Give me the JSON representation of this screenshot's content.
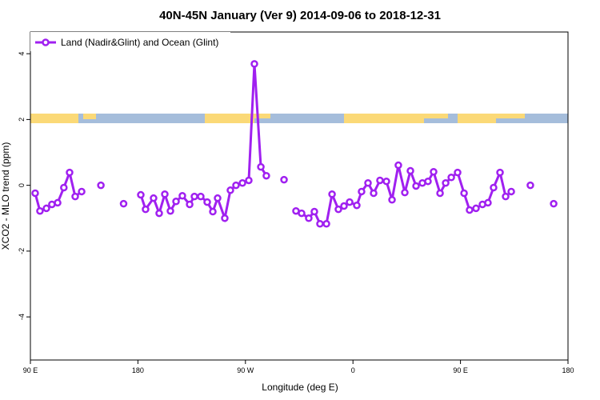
{
  "chart_data": {
    "type": "line",
    "title": "40N-45N January (Ver 9)   2014-09-06 to 2018-12-31",
    "x_label": "Longitude (deg E)",
    "y_label": "XCO2 - MLO trend (ppm)",
    "xlim": [
      90,
      540
    ],
    "ylim": [
      -5.31,
      4.66
    ],
    "xticks": [
      {
        "value": 90,
        "label": "90 E"
      },
      180,
      {
        "value": 270,
        "label": "90 W"
      },
      {
        "value": 360,
        "label": "0"
      },
      {
        "value": 450,
        "label": "90 E"
      },
      {
        "value": 540,
        "label": "180"
      }
    ],
    "yticks": [
      -4,
      -2,
      0,
      2,
      4
    ],
    "legend": "top-left",
    "series": [
      {
        "name": "Land (Nadir&Glint) and Ocean (Glint)",
        "color": "#a020f0",
        "x": [
          94,
          98,
          103.4,
          108,
          112.8,
          118,
          122.8,
          127.5,
          132.9,
          null,
          149,
          null,
          168,
          null,
          182.4,
          186.4,
          193.1,
          197.8,
          202.5,
          207.2,
          211.9,
          217.2,
          223.3,
          227.3,
          232.6,
          238,
          242.7,
          246.7,
          252.7,
          257.4,
          262.1,
          267.5,
          272.8,
          277.5,
          282.9,
          287.5,
          null,
          302.3,
          null,
          312.3,
          317,
          323,
          327.7,
          332.4,
          337.8,
          342.5,
          347.8,
          352.5,
          357.2,
          363.2,
          367.2,
          372.6,
          377.3,
          382.6,
          388,
          392.7,
          398,
          403.4,
          408.1,
          412.8,
          418.1,
          422.8,
          427.5,
          432.9,
          437.6,
          442.3,
          447.6,
          453,
          457.6,
          463,
          468.4,
          473,
          477.7,
          483.1,
          487.8,
          492.5,
          null,
          508.5,
          null,
          528
        ],
        "values": [
          -0.24,
          -0.78,
          -0.7,
          -0.58,
          -0.53,
          -0.07,
          0.39,
          -0.34,
          -0.19,
          null,
          0.0,
          null,
          -0.56,
          null,
          -0.29,
          -0.73,
          -0.39,
          -0.85,
          -0.27,
          -0.78,
          -0.49,
          -0.32,
          -0.58,
          -0.34,
          -0.34,
          -0.51,
          -0.8,
          -0.39,
          -1.0,
          -0.15,
          0.0,
          0.07,
          0.15,
          3.69,
          0.56,
          0.29,
          null,
          0.17,
          null,
          -0.78,
          -0.85,
          -1.0,
          -0.8,
          -1.17,
          -1.17,
          -0.27,
          -0.73,
          -0.63,
          -0.51,
          -0.61,
          -0.19,
          0.07,
          -0.24,
          0.15,
          0.12,
          -0.44,
          0.61,
          -0.22,
          0.44,
          -0.02,
          0.07,
          0.12,
          0.41,
          -0.24,
          0.07,
          0.24,
          0.39,
          -0.24,
          -0.75,
          -0.7,
          -0.58,
          -0.53,
          -0.07,
          0.39,
          -0.34,
          -0.19,
          null,
          0.0,
          null,
          -0.56
        ]
      }
    ]
  }
}
